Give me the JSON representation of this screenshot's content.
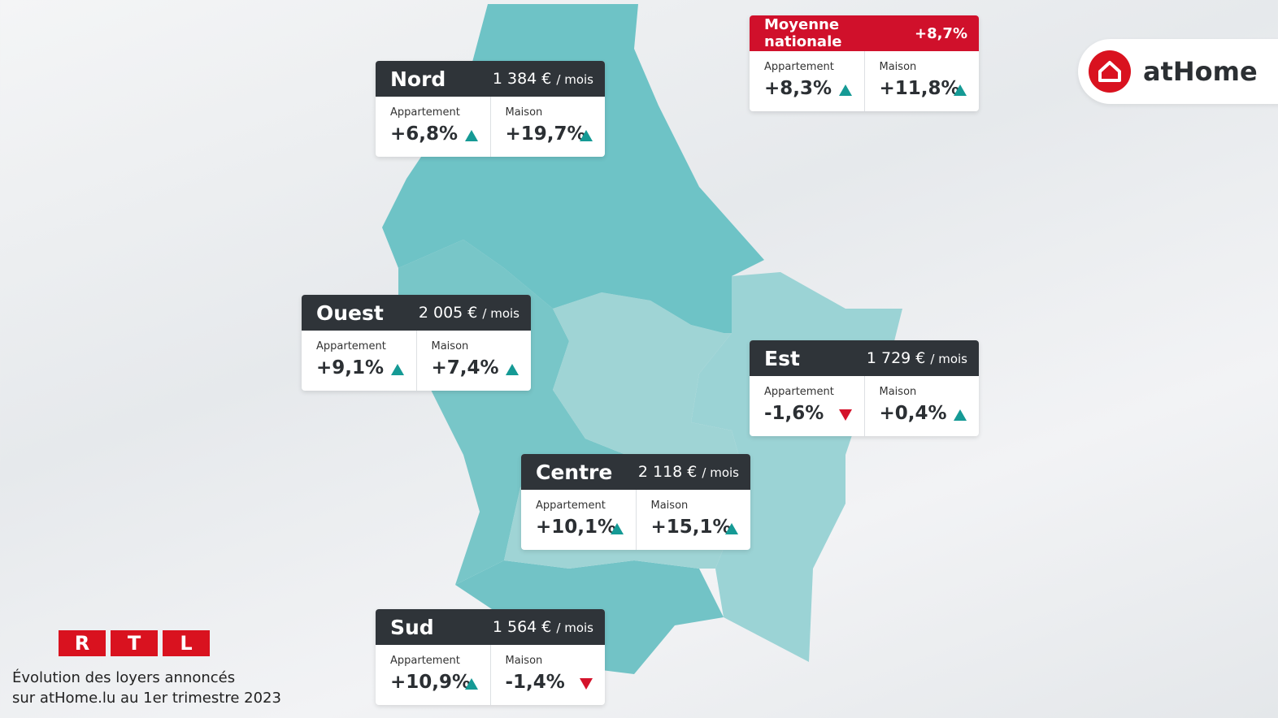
{
  "national": {
    "title": "Moyenne nationale",
    "value": "+8,7%",
    "appartement": {
      "label": "Appartement",
      "value": "+8,3%"
    },
    "maison": {
      "label": "Maison",
      "value": "+11,8%"
    }
  },
  "regions": [
    {
      "name": "Nord",
      "price": "1 384 €",
      "unit": "/ mois",
      "appartement": {
        "label": "Appartement",
        "value": "+6,8%"
      },
      "maison": {
        "label": "Maison",
        "value": "+19,7%"
      }
    },
    {
      "name": "Ouest",
      "price": "2 005 €",
      "unit": "/ mois",
      "appartement": {
        "label": "Appartement",
        "value": "+9,1%"
      },
      "maison": {
        "label": "Maison",
        "value": "+7,4%"
      }
    },
    {
      "name": "Est",
      "price": "1 729 €",
      "unit": "/ mois",
      "appartement": {
        "label": "Appartement",
        "value": "-1,6%"
      },
      "maison": {
        "label": "Maison",
        "value": "+0,4%"
      }
    },
    {
      "name": "Centre",
      "price": "2 118 €",
      "unit": "/ mois",
      "appartement": {
        "label": "Appartement",
        "value": "+10,1%"
      },
      "maison": {
        "label": "Maison",
        "value": "+15,1%"
      }
    },
    {
      "name": "Sud",
      "price": "1 564 €",
      "unit": "/ mois",
      "appartement": {
        "label": "Appartement",
        "value": "+10,9%"
      },
      "maison": {
        "label": "Maison",
        "value": "-1,4%"
      }
    }
  ],
  "logo": {
    "brand": "atHome"
  },
  "rtl": {
    "letters": [
      "R",
      "T",
      "L"
    ]
  },
  "caption": [
    "Évolution des loyers annoncés",
    "sur atHome.lu au 1er trimestre 2023"
  ]
}
